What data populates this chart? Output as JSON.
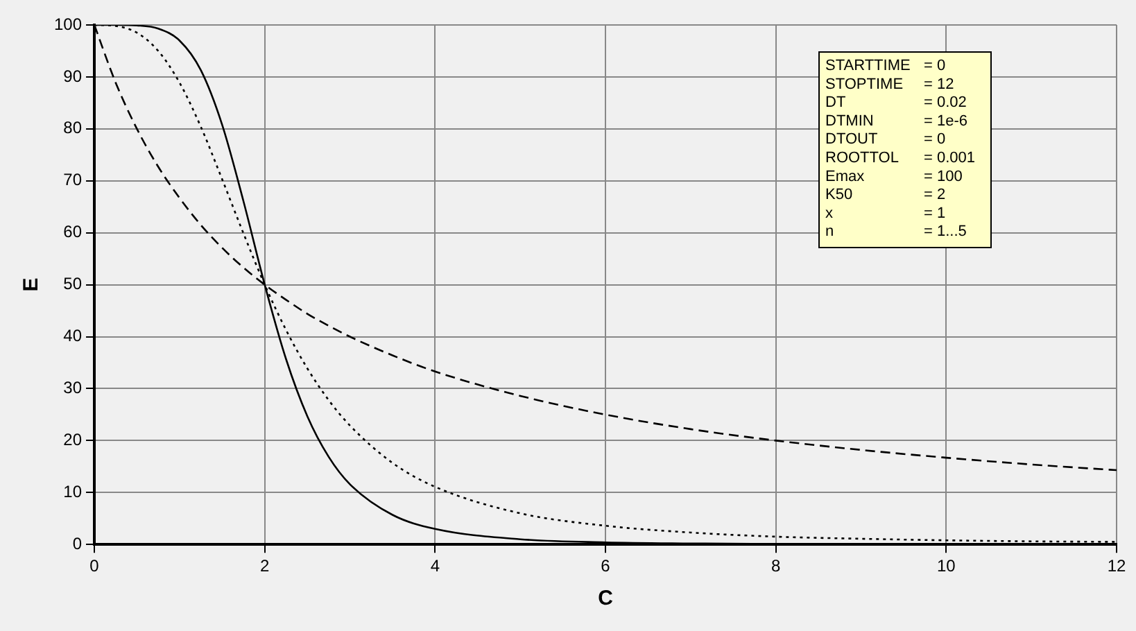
{
  "chart_data": {
    "type": "line",
    "xlabel": "C",
    "ylabel": "E",
    "x": [
      0,
      0.25,
      0.5,
      0.75,
      1,
      1.25,
      1.5,
      1.75,
      2,
      2.25,
      2.5,
      2.75,
      3,
      3.5,
      4,
      5,
      6,
      7,
      8,
      9,
      10,
      11,
      12
    ],
    "series": [
      {
        "color": "#000000",
        "line_style": "dashed",
        "values": [
          100,
          88.9,
          80,
          72.7,
          66.7,
          61.5,
          57.1,
          53.3,
          50,
          47.1,
          44.4,
          42.1,
          40,
          36.4,
          33.3,
          28.6,
          25,
          22.2,
          20,
          18.2,
          16.7,
          15.4,
          14.3
        ]
      },
      {
        "color": "#000000",
        "line_style": "dotted",
        "values": [
          100,
          99.8,
          98.5,
          95,
          88.9,
          80.4,
          70.3,
          59.9,
          50,
          41.3,
          33.9,
          27.8,
          22.9,
          15.7,
          11.1,
          6,
          3.6,
          2.3,
          1.5,
          1.1,
          0.8,
          0.6,
          0.5
        ]
      },
      {
        "color": "#000000",
        "line_style": "solid",
        "values": [
          100,
          100,
          99.9,
          99.3,
          97,
          91.3,
          80.8,
          66.1,
          50,
          35.7,
          24.7,
          16.9,
          11.6,
          5.7,
          3,
          1,
          0.4,
          0.2,
          0.1,
          0,
          0,
          0,
          0
        ]
      }
    ],
    "xlim": [
      0,
      12
    ],
    "xticks": [
      0,
      2,
      4,
      6,
      8,
      10,
      12
    ],
    "ylim": [
      0,
      100
    ],
    "yticks": [
      0,
      10,
      20,
      30,
      40,
      50,
      60,
      70,
      80,
      90,
      100
    ],
    "grid": true,
    "legend": false,
    "marker": "none",
    "annotations": [
      "STARTTIME = 0",
      "STOPTIME = 12",
      "DT = 0.02",
      "DTMIN = 1e-6",
      "DTOUT = 0",
      "ROOTTOL = 0.001",
      "Emax = 100",
      "K50 = 2",
      "x = 1",
      "n = 1...5"
    ]
  }
}
